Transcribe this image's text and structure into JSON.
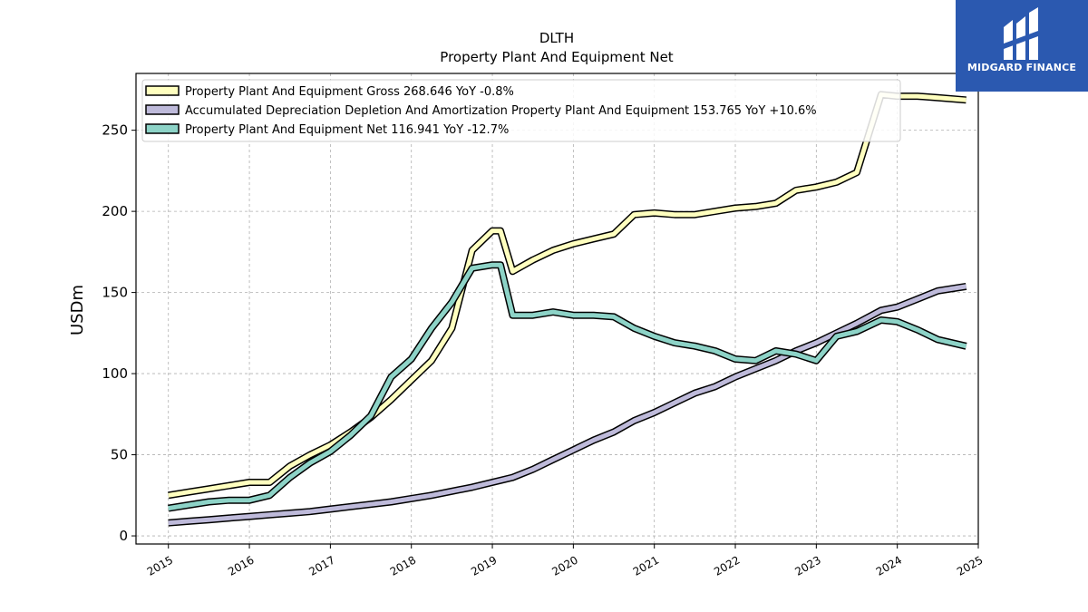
{
  "chart_data": {
    "type": "line",
    "title": "DLTH",
    "subtitle": "Property Plant And Equipment Net",
    "ylabel": "USDm",
    "xlabel": "",
    "xlim": [
      2014.6,
      2025.0
    ],
    "ylim": [
      -5,
      285
    ],
    "x_ticks": [
      2015,
      2016,
      2017,
      2018,
      2019,
      2020,
      2021,
      2022,
      2023,
      2024,
      2025
    ],
    "y_ticks": [
      0,
      50,
      100,
      150,
      200,
      250
    ],
    "grid": true,
    "legend_position": "top-left",
    "series": [
      {
        "name": "Property Plant And Equipment Gross  268.646 YoY -0.8%",
        "color": "#ffffbf",
        "x": [
          2015.0,
          2015.25,
          2015.5,
          2015.75,
          2016.0,
          2016.25,
          2016.5,
          2016.75,
          2017.0,
          2017.25,
          2017.5,
          2017.75,
          2018.0,
          2018.25,
          2018.5,
          2018.75,
          2019.0,
          2019.1,
          2019.25,
          2019.5,
          2019.75,
          2020.0,
          2020.25,
          2020.5,
          2020.75,
          2021.0,
          2021.25,
          2021.5,
          2021.75,
          2022.0,
          2022.25,
          2022.5,
          2022.75,
          2023.0,
          2023.25,
          2023.5,
          2023.8,
          2024.0,
          2024.25,
          2024.5,
          2024.85
        ],
        "values": [
          25,
          27,
          29,
          31,
          33,
          33,
          43,
          50,
          56,
          64,
          73,
          84,
          96,
          108,
          128,
          176,
          188,
          188,
          163,
          170,
          176,
          180,
          183,
          186,
          198,
          199,
          198,
          198,
          200,
          202,
          203,
          205,
          213,
          215,
          218,
          224,
          272,
          271,
          271,
          270,
          268.646
        ]
      },
      {
        "name": "Accumulated Depreciation Depletion And Amortization Property Plant And Equipment  153.765 YoY +10.6%",
        "color": "#bebada",
        "x": [
          2015.0,
          2015.25,
          2015.5,
          2015.75,
          2016.0,
          2016.25,
          2016.5,
          2016.75,
          2017.0,
          2017.25,
          2017.5,
          2017.75,
          2018.0,
          2018.25,
          2018.5,
          2018.75,
          2019.0,
          2019.25,
          2019.5,
          2019.75,
          2020.0,
          2020.25,
          2020.5,
          2020.75,
          2021.0,
          2021.25,
          2021.5,
          2021.75,
          2022.0,
          2022.25,
          2022.5,
          2022.75,
          2023.0,
          2023.25,
          2023.5,
          2023.8,
          2024.0,
          2024.25,
          2024.5,
          2024.85
        ],
        "values": [
          8,
          9,
          10,
          11,
          12,
          13,
          14,
          15,
          16.5,
          18,
          19.5,
          21,
          23,
          25,
          27.5,
          30,
          33,
          36,
          41,
          47,
          53,
          59,
          64,
          71,
          76,
          82,
          88,
          92,
          98,
          103,
          108,
          114,
          119,
          125,
          131,
          139,
          141,
          146,
          151,
          153.765
        ]
      },
      {
        "name": "Property Plant And Equipment Net  116.941 YoY -12.7%",
        "color": "#8dd3c7",
        "x": [
          2015.0,
          2015.25,
          2015.5,
          2015.75,
          2016.0,
          2016.25,
          2016.5,
          2016.75,
          2017.0,
          2017.25,
          2017.5,
          2017.75,
          2018.0,
          2018.25,
          2018.5,
          2018.75,
          2019.0,
          2019.1,
          2019.25,
          2019.5,
          2019.75,
          2020.0,
          2020.25,
          2020.5,
          2020.75,
          2021.0,
          2021.25,
          2021.5,
          2021.75,
          2022.0,
          2022.25,
          2022.5,
          2022.75,
          2023.0,
          2023.25,
          2023.5,
          2023.8,
          2024.0,
          2024.25,
          2024.5,
          2024.85
        ],
        "values": [
          17,
          19,
          21,
          22,
          22,
          25,
          36,
          45,
          52,
          62,
          74,
          98,
          109,
          128,
          144,
          165,
          167,
          167,
          136,
          136,
          138,
          136,
          136,
          135,
          128,
          123,
          119,
          117,
          114,
          109,
          108,
          114,
          112,
          108,
          123,
          126,
          133,
          132,
          127,
          121,
          116.941
        ]
      }
    ]
  },
  "logo": {
    "text": "MIDGARD FINANCE"
  }
}
